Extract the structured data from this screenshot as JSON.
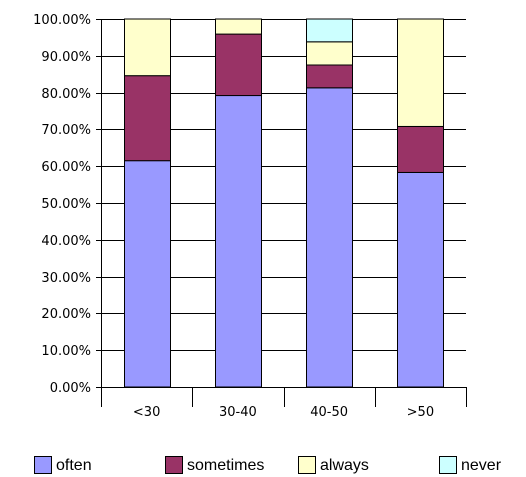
{
  "chart_data": {
    "type": "bar",
    "stacked": true,
    "categories": [
      "<30",
      "30-40",
      "40-50",
      ">50"
    ],
    "series": [
      {
        "name": "often",
        "color": "#9999FF",
        "values": [
          61.5,
          79.2,
          81.3,
          58.3
        ]
      },
      {
        "name": "sometimes",
        "color": "#993366",
        "values": [
          23.1,
          16.7,
          6.2,
          12.5
        ]
      },
      {
        "name": "always",
        "color": "#FFFFCC",
        "values": [
          15.4,
          4.1,
          6.3,
          29.2
        ]
      },
      {
        "name": "never",
        "color": "#CCFFFF",
        "values": [
          0.0,
          0.0,
          6.2,
          0.0
        ]
      }
    ],
    "ylim": [
      0,
      100
    ],
    "y_ticks": [
      "0.00%",
      "10.00%",
      "20.00%",
      "30.00%",
      "40.00%",
      "50.00%",
      "60.00%",
      "70.00%",
      "80.00%",
      "90.00%",
      "100.00%"
    ],
    "y_tick_values": [
      0,
      10,
      20,
      30,
      40,
      50,
      60,
      70,
      80,
      90,
      100
    ],
    "grid": true,
    "legend_position": "bottom",
    "title": "",
    "xlabel": "",
    "ylabel": ""
  }
}
